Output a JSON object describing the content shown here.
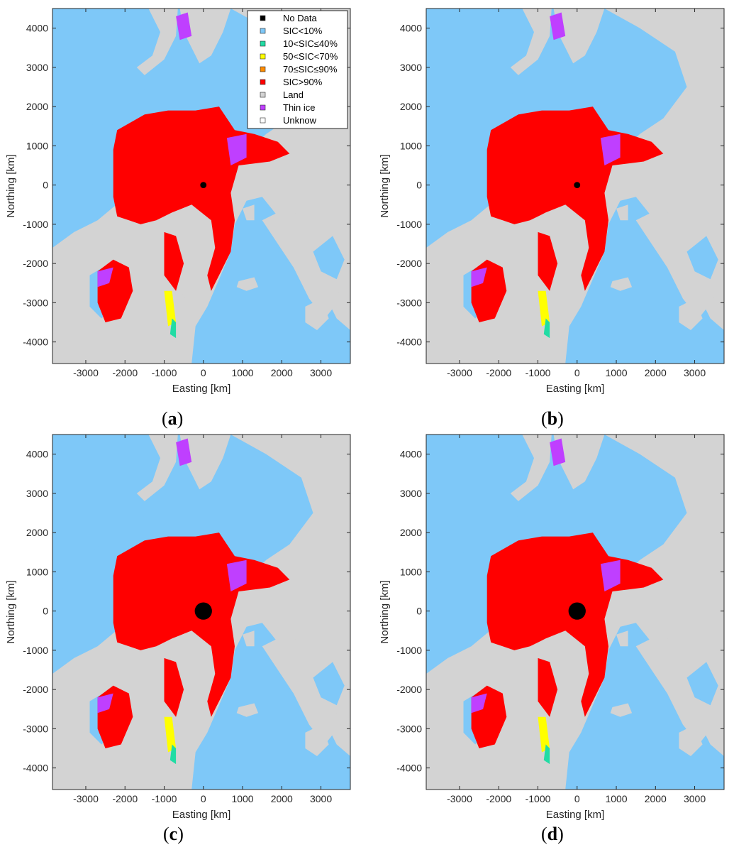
{
  "figure": {
    "x_label": "Easting [km]",
    "y_label": "Northing [km]",
    "x_ticks": [
      "-3000",
      "-2000",
      "-1000",
      "0",
      "1000",
      "2000",
      "3000"
    ],
    "y_ticks": [
      "4000",
      "3000",
      "2000",
      "1000",
      "0",
      "-1000",
      "-2000",
      "-3000",
      "-4000"
    ],
    "x_range_km": [
      -3850,
      3750
    ],
    "y_range_km": [
      -4550,
      4500
    ],
    "colors": {
      "no_data": "#000000",
      "sic_lt10": "#7ec8f8",
      "sic_10_40": "#21dca4",
      "sic_50_70": "#ffff00",
      "sic_70_90": "#ff8c00",
      "sic_gt90": "#ff0000",
      "land": "#d3d3d3",
      "thin_ice": "#bf3fff",
      "unknown": "#ffffff"
    }
  },
  "legend": [
    {
      "label": "No Data",
      "color": "#000000"
    },
    {
      "label": "SIC<10%",
      "color": "#7ec8f8"
    },
    {
      "label": "10<SIC≤40%",
      "color": "#21dca4"
    },
    {
      "label": "50<SIC<70%",
      "color": "#ffff00"
    },
    {
      "label": "70≤SIC≤90%",
      "color": "#ff8c00"
    },
    {
      "label": "SIC>90%",
      "color": "#ff0000"
    },
    {
      "label": "Land",
      "color": "#d3d3d3"
    },
    {
      "label": "Thin ice",
      "color": "#bf3fff"
    },
    {
      "label": "Unknow",
      "color": "#ffffff"
    }
  ],
  "panels": [
    {
      "id": "a",
      "caption_letter": "a"
    },
    {
      "id": "b",
      "caption_letter": "b"
    },
    {
      "id": "c",
      "caption_letter": "c"
    },
    {
      "id": "d",
      "caption_letter": "d"
    }
  ]
}
